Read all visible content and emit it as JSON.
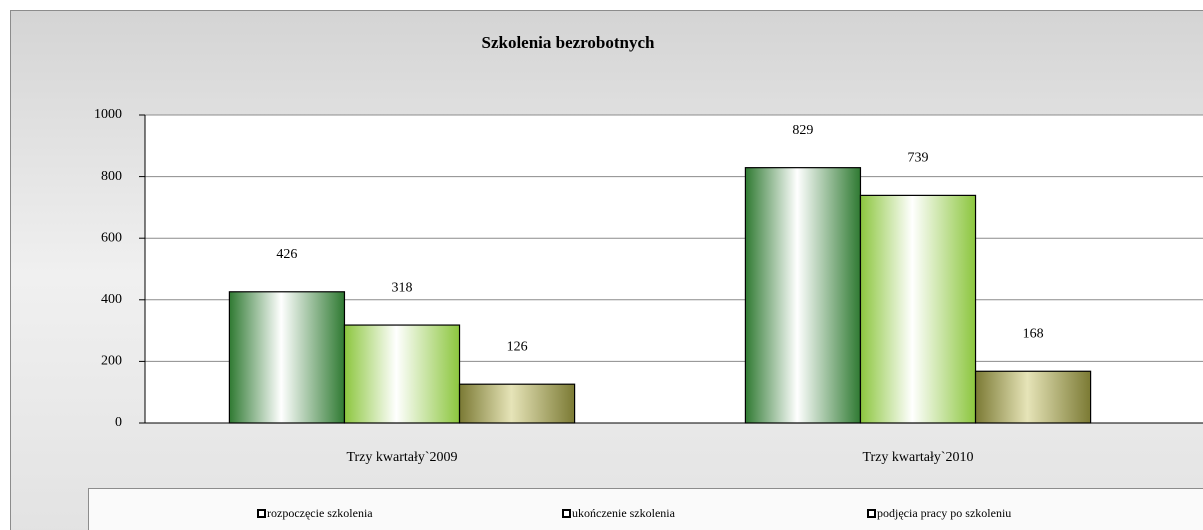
{
  "chart_data": {
    "type": "bar",
    "title": "Szkolenia bezrobotnych",
    "categories": [
      "Trzy kwartały`2009",
      "Trzy kwartały`2010"
    ],
    "series": [
      {
        "name": "rozpoczęcie szkolenia",
        "color": "#2f7a32",
        "values": [
          426,
          829
        ]
      },
      {
        "name": "ukończenie szkolenia",
        "color": "#8cc63e",
        "values": [
          318,
          739
        ]
      },
      {
        "name": "podjęcia pracy po szkoleniu",
        "color": "#7b7a34",
        "values": [
          126,
          168
        ]
      }
    ],
    "ylim": [
      0,
      1000
    ],
    "yticks": [
      0,
      200,
      400,
      600,
      800,
      1000
    ],
    "grid": true,
    "legend": "bottom"
  }
}
